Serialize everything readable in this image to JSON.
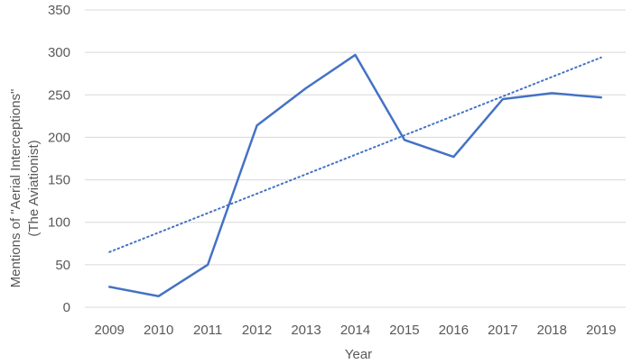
{
  "chart_data": {
    "type": "line",
    "title": "",
    "xlabel": "Year",
    "ylabel_lines": [
      "Mentions of \"Aerial Interceptions\"",
      "(The Aviationist)"
    ],
    "categories": [
      "2009",
      "2010",
      "2011",
      "2012",
      "2013",
      "2014",
      "2015",
      "2016",
      "2017",
      "2018",
      "2019"
    ],
    "series": [
      {
        "values": [
          24,
          13,
          50,
          214,
          258,
          297,
          197,
          177,
          245,
          252,
          247
        ],
        "color": "#4472c4",
        "style": "solid"
      }
    ],
    "trendline": {
      "type": "linear",
      "start_value": 65,
      "end_value": 294,
      "color": "#4472c4",
      "style": "dotted"
    },
    "ylim": [
      0,
      350
    ],
    "yticks": [
      0,
      50,
      100,
      150,
      200,
      250,
      300,
      350
    ],
    "grid": true,
    "grid_color": "#d9d9d9",
    "legend": "none"
  }
}
